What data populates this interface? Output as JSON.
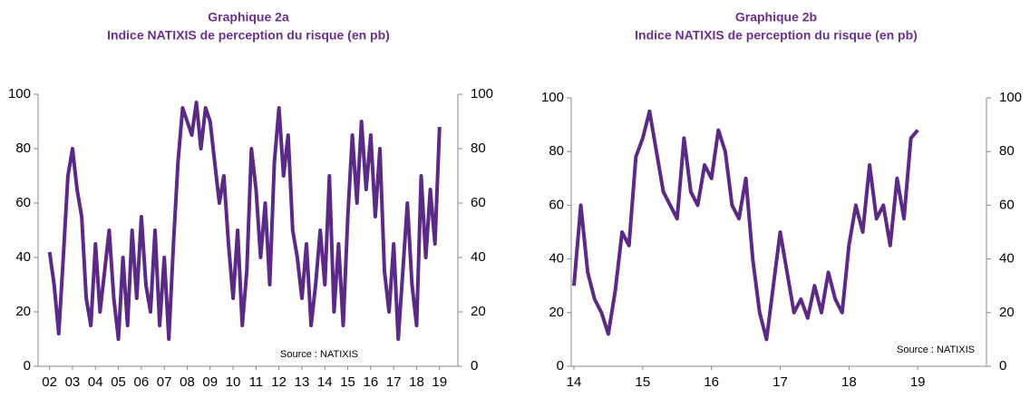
{
  "chart_data": [
    {
      "type": "line",
      "title": "Graphique 2a",
      "subtitle": "Indice NATIXIS de perception du risque (en pb)",
      "annotation": "Source : NATIXIS",
      "color": "#5b2a86",
      "x": [
        2002.0,
        2002.2,
        2002.4,
        2002.6,
        2002.8,
        2003.0,
        2003.2,
        2003.4,
        2003.6,
        2003.8,
        2004.0,
        2004.2,
        2004.4,
        2004.6,
        2004.8,
        2005.0,
        2005.2,
        2005.4,
        2005.6,
        2005.8,
        2006.0,
        2006.2,
        2006.4,
        2006.6,
        2006.8,
        2007.0,
        2007.2,
        2007.4,
        2007.6,
        2007.8,
        2008.0,
        2008.2,
        2008.4,
        2008.6,
        2008.8,
        2009.0,
        2009.2,
        2009.4,
        2009.6,
        2009.8,
        2010.0,
        2010.2,
        2010.4,
        2010.6,
        2010.8,
        2011.0,
        2011.2,
        2011.4,
        2011.6,
        2011.8,
        2012.0,
        2012.2,
        2012.4,
        2012.6,
        2012.8,
        2013.0,
        2013.2,
        2013.4,
        2013.6,
        2013.8,
        2014.0,
        2014.2,
        2014.4,
        2014.6,
        2014.8,
        2015.0,
        2015.2,
        2015.4,
        2015.6,
        2015.8,
        2016.0,
        2016.2,
        2016.4,
        2016.6,
        2016.8,
        2017.0,
        2017.2,
        2017.4,
        2017.6,
        2017.8,
        2018.0,
        2018.2,
        2018.4,
        2018.6,
        2018.8,
        2019.0
      ],
      "values": [
        42,
        30,
        12,
        40,
        70,
        80,
        65,
        55,
        25,
        15,
        45,
        20,
        35,
        50,
        25,
        10,
        40,
        15,
        50,
        25,
        55,
        30,
        20,
        50,
        15,
        40,
        10,
        45,
        75,
        95,
        90,
        85,
        97,
        80,
        95,
        90,
        75,
        60,
        70,
        45,
        25,
        50,
        15,
        35,
        80,
        65,
        40,
        60,
        30,
        75,
        95,
        70,
        85,
        50,
        40,
        25,
        45,
        15,
        30,
        50,
        30,
        70,
        20,
        45,
        15,
        55,
        85,
        60,
        90,
        65,
        85,
        55,
        80,
        35,
        20,
        45,
        10,
        35,
        60,
        30,
        15,
        70,
        40,
        65,
        45,
        88
      ],
      "xlim": [
        2001.5,
        2019.8
      ],
      "ylim": [
        0,
        100
      ],
      "yticks": [
        0,
        20,
        40,
        60,
        80,
        100
      ],
      "y2lim": [
        0,
        100
      ],
      "y2ticks": [
        0,
        20,
        40,
        60,
        80,
        100
      ],
      "xticks": [
        {
          "value": 2002,
          "label": "02"
        },
        {
          "value": 2003,
          "label": "03"
        },
        {
          "value": 2004,
          "label": "04"
        },
        {
          "value": 2005,
          "label": "05"
        },
        {
          "value": 2006,
          "label": "06"
        },
        {
          "value": 2007,
          "label": "07"
        },
        {
          "value": 2008,
          "label": "08"
        },
        {
          "value": 2009,
          "label": "09"
        },
        {
          "value": 2010,
          "label": "10"
        },
        {
          "value": 2011,
          "label": "11"
        },
        {
          "value": 2012,
          "label": "12"
        },
        {
          "value": 2013,
          "label": "13"
        },
        {
          "value": 2014,
          "label": "14"
        },
        {
          "value": 2015,
          "label": "15"
        },
        {
          "value": 2016,
          "label": "16"
        },
        {
          "value": 2017,
          "label": "17"
        },
        {
          "value": 2018,
          "label": "18"
        },
        {
          "value": 2019,
          "label": "19"
        }
      ]
    },
    {
      "type": "line",
      "title": "Graphique 2b",
      "subtitle": "Indice NATIXIS de perception du risque (en pb)",
      "annotation": "Source : NATIXIS",
      "color": "#5b2a86",
      "x": [
        2014.0,
        2014.1,
        2014.2,
        2014.3,
        2014.4,
        2014.5,
        2014.6,
        2014.7,
        2014.8,
        2014.9,
        2015.0,
        2015.1,
        2015.2,
        2015.3,
        2015.4,
        2015.5,
        2015.6,
        2015.7,
        2015.8,
        2015.9,
        2016.0,
        2016.1,
        2016.2,
        2016.3,
        2016.4,
        2016.5,
        2016.6,
        2016.7,
        2016.8,
        2016.9,
        2017.0,
        2017.1,
        2017.2,
        2017.3,
        2017.4,
        2017.5,
        2017.6,
        2017.7,
        2017.8,
        2017.9,
        2018.0,
        2018.1,
        2018.2,
        2018.3,
        2018.4,
        2018.5,
        2018.6,
        2018.7,
        2018.8,
        2018.9,
        2019.0
      ],
      "values": [
        30,
        60,
        35,
        25,
        20,
        12,
        28,
        50,
        45,
        78,
        85,
        95,
        80,
        65,
        60,
        55,
        85,
        65,
        60,
        75,
        70,
        88,
        80,
        60,
        55,
        70,
        40,
        20,
        10,
        30,
        50,
        35,
        20,
        25,
        18,
        30,
        20,
        35,
        25,
        20,
        45,
        60,
        50,
        75,
        55,
        60,
        45,
        70,
        55,
        85,
        88
      ],
      "xlim": [
        2013.96,
        2020.0
      ],
      "ylim": [
        0,
        100
      ],
      "yticks": [
        0,
        20,
        40,
        60,
        80,
        100
      ],
      "y2lim": [
        0,
        100
      ],
      "y2ticks": [
        0,
        20,
        40,
        60,
        80,
        100
      ],
      "xticks": [
        {
          "value": 2014,
          "label": "14"
        },
        {
          "value": 2015,
          "label": "15"
        },
        {
          "value": 2016,
          "label": "16"
        },
        {
          "value": 2017,
          "label": "17"
        },
        {
          "value": 2018,
          "label": "18"
        },
        {
          "value": 2019,
          "label": "19"
        }
      ]
    }
  ]
}
